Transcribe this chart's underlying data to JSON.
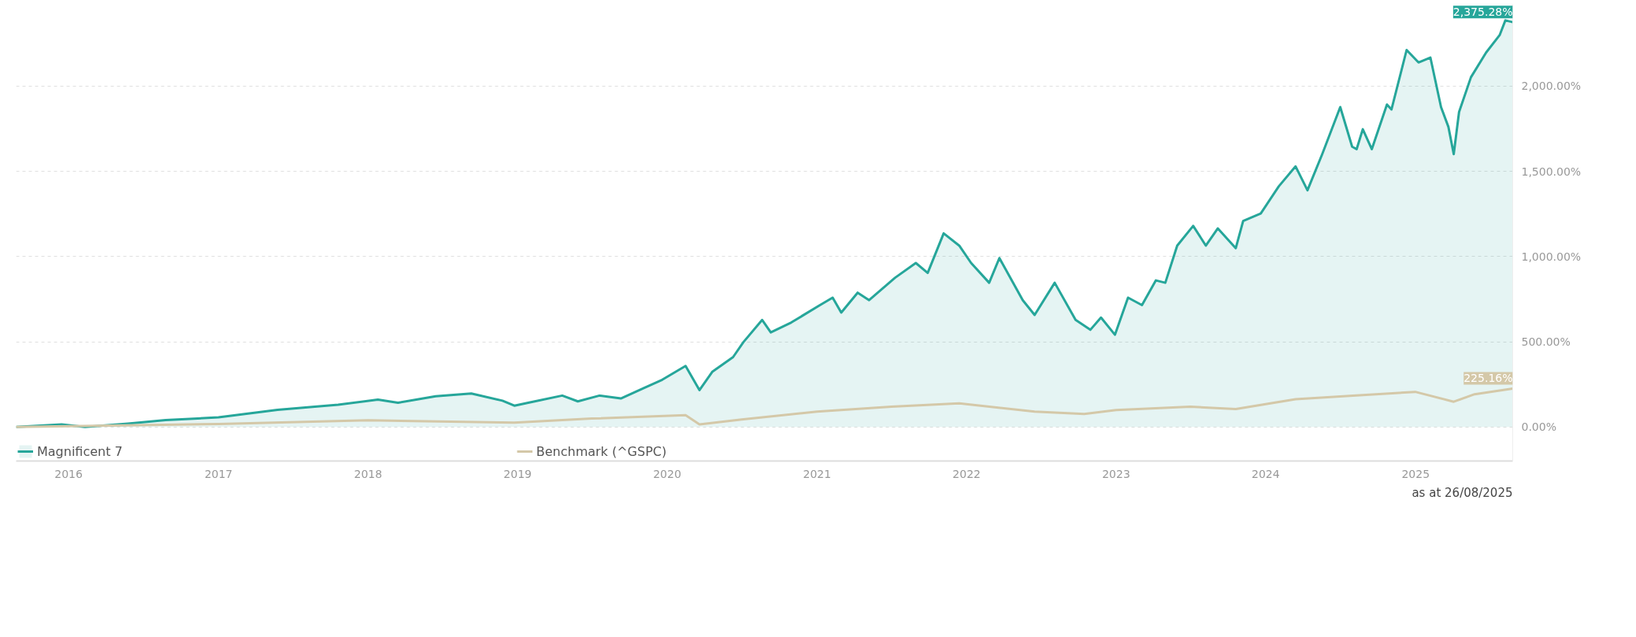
{
  "chart_data": {
    "type": "area",
    "xlim": [
      "2015-08-26",
      "2025-08-26"
    ],
    "ylim": [
      -200,
      2480
    ],
    "xticks": [
      "2016",
      "2017",
      "2018",
      "2019",
      "2020",
      "2021",
      "2022",
      "2023",
      "2024",
      "2025"
    ],
    "yticks": [
      {
        "value": 0,
        "label": "0.00%"
      },
      {
        "value": 500,
        "label": "500.00%"
      },
      {
        "value": 1000,
        "label": "1,000.00%"
      },
      {
        "value": 1500,
        "label": "1,500.00%"
      },
      {
        "value": 2000,
        "label": "2,000.00%"
      }
    ],
    "grid": "y",
    "legend": "bottom",
    "marker": "none",
    "line_style": "solid",
    "annotations": [
      "as at 26/08/2025"
    ],
    "series": [
      {
        "name": "Magnificent 7",
        "color": "#26a69a",
        "x": [
          "2015-08-26",
          "2015-12-15",
          "2016-02-10",
          "2016-05-25",
          "2016-08-25",
          "2017-01-01",
          "2017-05-25",
          "2017-10-20",
          "2018-01-25",
          "2018-03-15",
          "2018-06-15",
          "2018-09-10",
          "2018-11-25",
          "2018-12-24",
          "2019-04-20",
          "2019-05-28",
          "2019-07-20",
          "2019-09-10",
          "2019-11-05",
          "2019-12-20",
          "2020-02-15",
          "2020-03-20",
          "2020-04-20",
          "2020-06-10",
          "2020-07-05",
          "2020-08-20",
          "2020-09-10",
          "2020-10-30",
          "2021-01-08",
          "2021-02-08",
          "2021-03-01",
          "2021-04-10",
          "2021-05-08",
          "2021-07-10",
          "2021-08-30",
          "2021-09-28",
          "2021-11-06",
          "2021-12-14",
          "2022-01-12",
          "2022-02-25",
          "2022-03-22",
          "2022-05-18",
          "2022-06-16",
          "2022-08-04",
          "2022-09-24",
          "2022-10-30",
          "2022-11-25",
          "2022-12-29",
          "2023-01-30",
          "2023-03-05",
          "2023-04-08",
          "2023-05-01",
          "2023-05-30",
          "2023-07-08",
          "2023-08-08",
          "2023-09-06",
          "2023-10-20",
          "2023-11-07",
          "2023-12-20",
          "2024-02-02",
          "2024-03-14",
          "2024-04-12",
          "2024-05-18",
          "2024-07-01",
          "2024-07-30",
          "2024-08-10",
          "2024-08-25",
          "2024-09-16",
          "2024-10-23",
          "2024-11-03",
          "2024-12-10",
          "2025-01-08",
          "2025-02-06",
          "2025-03-04",
          "2025-03-22",
          "2025-04-04",
          "2025-04-17",
          "2025-05-16",
          "2025-06-22",
          "2025-07-25",
          "2025-08-08",
          "2025-08-26"
        ],
        "values": [
          0,
          15,
          0,
          20,
          40,
          56,
          100,
          130,
          160,
          142,
          180,
          196,
          154,
          125,
          184,
          150,
          184,
          167,
          228,
          277,
          358,
          216,
          323,
          410,
          497,
          628,
          555,
          613,
          715,
          759,
          671,
          788,
          744,
          875,
          962,
          904,
          1136,
          1064,
          962,
          846,
          991,
          744,
          657,
          846,
          628,
          570,
          642,
          541,
          759,
          715,
          860,
          846,
          1064,
          1180,
          1064,
          1165,
          1049,
          1209,
          1253,
          1412,
          1529,
          1389,
          1601,
          1877,
          1645,
          1630,
          1747,
          1630,
          1892,
          1863,
          2212,
          2139,
          2168,
          1877,
          1761,
          1601,
          1848,
          2052,
          2197,
          2299,
          2386,
          2375.28
        ],
        "value_labels": [
          null,
          null,
          null,
          null,
          null,
          null,
          null,
          null,
          null,
          null,
          null,
          null,
          null,
          null,
          null,
          null,
          null,
          null,
          null,
          null,
          null,
          null,
          null,
          null,
          null,
          null,
          null,
          null,
          null,
          null,
          null,
          null,
          null,
          null,
          null,
          null,
          null,
          null,
          null,
          null,
          null,
          null,
          null,
          null,
          null,
          null,
          null,
          null,
          null,
          null,
          null,
          null,
          null,
          null,
          null,
          null,
          null,
          null,
          null,
          null,
          null,
          null,
          null,
          null,
          null,
          null,
          null,
          null,
          null,
          null,
          null,
          null,
          null,
          null,
          null,
          null,
          null,
          null,
          null,
          null,
          null,
          "2,375.28%"
        ]
      },
      {
        "name": "Benchmark (^GSPC)",
        "type": "line",
        "color": "#d4c8a8",
        "x": [
          "2015-08-26",
          "2017-01-01",
          "2018-01-01",
          "2018-12-24",
          "2019-07-01",
          "2020-02-15",
          "2020-03-20",
          "2020-07-01",
          "2021-01-01",
          "2021-07-01",
          "2021-12-14",
          "2022-06-16",
          "2022-10-15",
          "2023-01-01",
          "2023-07-01",
          "2023-10-20",
          "2024-03-14",
          "2024-08-01",
          "2024-12-31",
          "2025-04-04",
          "2025-05-25",
          "2025-08-26"
        ],
        "values": [
          0,
          17,
          39,
          25,
          49,
          69,
          15,
          44,
          90,
          119,
          139,
          90,
          76,
          99,
          119,
          105,
          163,
          183,
          206,
          148,
          192,
          225.16
        ],
        "value_labels": [
          null,
          null,
          null,
          null,
          null,
          null,
          null,
          null,
          null,
          null,
          null,
          null,
          null,
          null,
          null,
          null,
          null,
          null,
          null,
          null,
          null,
          "225.16%"
        ]
      }
    ]
  }
}
